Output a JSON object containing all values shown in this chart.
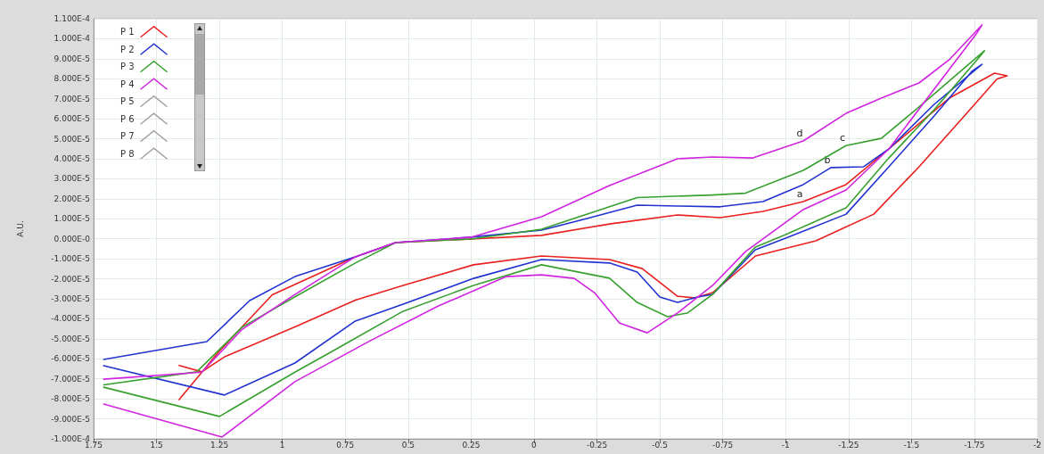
{
  "chart_data": {
    "type": "line",
    "ylabel": "A.U.",
    "xlim": [
      1.75,
      -2
    ],
    "xticks": [
      1.75,
      1.5,
      1.25,
      1,
      0.75,
      0.5,
      0.25,
      0,
      -0.25,
      -0.5,
      -0.75,
      -1,
      -1.25,
      -1.5,
      -1.75,
      -2
    ],
    "ylim": [
      -0.0001,
      0.00011
    ],
    "yticks": [
      {
        "value": 0.00011,
        "label": "1.100E-4"
      },
      {
        "value": 0.0001,
        "label": "1.000E-4"
      },
      {
        "value": 9e-05,
        "label": "9.000E-5"
      },
      {
        "value": 8e-05,
        "label": "8.000E-5"
      },
      {
        "value": 7e-05,
        "label": "7.000E-5"
      },
      {
        "value": 6e-05,
        "label": "6.000E-5"
      },
      {
        "value": 5e-05,
        "label": "5.000E-5"
      },
      {
        "value": 4e-05,
        "label": "4.000E-5"
      },
      {
        "value": 3e-05,
        "label": "3.000E-5"
      },
      {
        "value": 2e-05,
        "label": "2.000E-5"
      },
      {
        "value": 1e-05,
        "label": "1.000E-5"
      },
      {
        "value": 0,
        "label": "0.000E-0"
      },
      {
        "value": -1e-05,
        "label": "-1.000E-5"
      },
      {
        "value": -2e-05,
        "label": "-2.000E-5"
      },
      {
        "value": -3e-05,
        "label": "-3.000E-5"
      },
      {
        "value": -4e-05,
        "label": "-4.000E-5"
      },
      {
        "value": -5e-05,
        "label": "-5.000E-5"
      },
      {
        "value": -6e-05,
        "label": "-6.000E-5"
      },
      {
        "value": -7e-05,
        "label": "-7.000E-5"
      },
      {
        "value": -8e-05,
        "label": "-8.000E-5"
      },
      {
        "value": -9e-05,
        "label": "-9.000E-5"
      },
      {
        "value": -0.0001,
        "label": "-1.000E-4"
      }
    ],
    "grid": true,
    "legend": "top left",
    "marker": "none",
    "line_style": "solid",
    "annotations": [
      {
        "text": "a",
        "x": -1.07,
        "y": 1.86e-05
      },
      {
        "text": "b",
        "x": -1.18,
        "y": 3.56e-05
      },
      {
        "text": "c",
        "x": -1.24,
        "y": 4.66e-05
      },
      {
        "text": "d",
        "x": -1.07,
        "y": 4.89e-05
      }
    ],
    "series": [
      {
        "name": "P 1",
        "color": "#e8201f",
        "x": [
          1.41,
          1.25,
          1.04,
          0.71,
          0.55,
          0.25,
          -0.03,
          -0.3,
          -0.57,
          -0.74,
          -0.91,
          -1.07,
          -1.24,
          -1.41,
          -1.65,
          -1.83,
          -1.88,
          -1.84,
          -1.71,
          -1.53,
          -1.35,
          -1.12,
          -0.88,
          -0.71,
          -0.64,
          -0.57,
          -0.43,
          -0.3,
          -0.03,
          0.24,
          0.52,
          0.71,
          0.95,
          1.23,
          1.32,
          1.41
        ],
        "values": [
          -8.04e-05,
          -5.61e-05,
          -2.8e-05,
          -9e-06,
          -1.9e-06,
          -1e-07,
          1.7e-06,
          7.4e-06,
          1.19e-05,
          1.06e-05,
          1.37e-05,
          1.86e-05,
          2.71e-05,
          4.49e-05,
          7.03e-05,
          8.28e-05,
          8.15e-05,
          7.99e-05,
          6.14e-05,
          3.6e-05,
          1.23e-05,
          -1e-06,
          -8.6e-06,
          -2.69e-05,
          -2.96e-05,
          -2.87e-05,
          -1.49e-05,
          -1.04e-05,
          -8.6e-06,
          -1.3e-05,
          -2.33e-05,
          -3.07e-05,
          -4.4e-05,
          -5.9e-05,
          -6.65e-05,
          -6.33e-05
        ]
      },
      {
        "name": "P 2",
        "color": "#2232d0",
        "x": [
          1.71,
          1.3,
          1.13,
          0.95,
          0.71,
          0.55,
          0.25,
          -0.03,
          -0.21,
          -0.41,
          -0.57,
          -0.74,
          -0.91,
          -1.07,
          -1.18,
          -1.31,
          -1.41,
          -1.59,
          -1.78,
          -1.74,
          -1.59,
          -1.41,
          -1.24,
          -1,
          -0.88,
          -0.71,
          -0.65,
          -0.57,
          -0.5,
          -0.41,
          -0.3,
          -0.03,
          0.24,
          0.52,
          0.71,
          0.95,
          1.23,
          1.71
        ],
        "values": [
          -6.03e-05,
          -5.14e-05,
          -3.09e-05,
          -1.89e-05,
          -9e-06,
          -1.9e-06,
          8e-07,
          4.3e-06,
          1.01e-05,
          1.68e-05,
          1.64e-05,
          1.6e-05,
          1.86e-05,
          2.71e-05,
          3.56e-05,
          3.6e-05,
          4.49e-05,
          6.72e-05,
          8.72e-05,
          8.37e-05,
          6.14e-05,
          3.6e-05,
          1.23e-05,
          3e-07,
          -5.5e-06,
          -2.78e-05,
          -2.91e-05,
          -3.18e-05,
          -2.91e-05,
          -1.66e-05,
          -1.21e-05,
          -1.04e-05,
          -1.98e-05,
          -3.27e-05,
          -4.11e-05,
          -6.21e-05,
          -7.81e-05,
          -6.34e-05
        ]
      },
      {
        "name": "P 3",
        "color": "#38a030",
        "x": [
          1.71,
          1.34,
          1.16,
          0.95,
          0.71,
          0.55,
          0.25,
          -0.03,
          -0.41,
          -0.71,
          -0.84,
          -1.07,
          -1.24,
          -1.38,
          -1.53,
          -1.79,
          -1.76,
          -1.59,
          -1.41,
          -1.24,
          -1,
          -0.88,
          -0.71,
          -0.61,
          -0.53,
          -0.41,
          -0.3,
          -0.03,
          0.24,
          0.52,
          0.79,
          0.95,
          1.25,
          1.71
        ],
        "values": [
          -7.3e-05,
          -6.65e-05,
          -4.42e-05,
          -2.9e-05,
          -1.21e-05,
          -1.9e-06,
          -1e-07,
          4.8e-06,
          2.06e-05,
          2.19e-05,
          2.28e-05,
          3.42e-05,
          4.66e-05,
          5.02e-05,
          6.59e-05,
          9.4e-05,
          8.94e-05,
          6.45e-05,
          4.04e-05,
          1.55e-05,
          2.1e-06,
          -4.1e-06,
          -2.77e-05,
          -3.71e-05,
          -3.89e-05,
          -3.18e-05,
          -1.97e-05,
          -1.3e-05,
          -2.33e-05,
          -3.62e-05,
          -5.54e-05,
          -6.67e-05,
          -8.88e-05,
          -7.42e-05
        ]
      },
      {
        "name": "P 4",
        "color": "#d024e0",
        "x": [
          1.71,
          1.32,
          1.16,
          0.95,
          0.71,
          0.55,
          0.25,
          -0.03,
          -0.3,
          -0.57,
          -0.71,
          -0.87,
          -1.07,
          -1.24,
          -1.38,
          -1.53,
          -1.65,
          -1.78,
          -1.76,
          -1.59,
          -1.41,
          -1.24,
          -1.07,
          -0.84,
          -0.71,
          -0.57,
          -0.45,
          -0.34,
          -0.24,
          -0.16,
          -0.03,
          0.11,
          0.38,
          0.65,
          0.95,
          1.24,
          1.71
        ],
        "values": [
          -7.02e-05,
          -6.67e-05,
          -4.53e-05,
          -2.78e-05,
          -9e-06,
          -1.9e-06,
          8e-07,
          1.1e-05,
          2.66e-05,
          4e-05,
          4.09e-05,
          4.04e-05,
          4.89e-05,
          6.27e-05,
          7.03e-05,
          7.79e-05,
          8.95e-05,
          0.0001069,
          0.0001029,
          7.48e-05,
          4.49e-05,
          2.44e-05,
          1.46e-05,
          -6.4e-06,
          -2.33e-05,
          -3.71e-05,
          -4.7e-05,
          -4.21e-05,
          -2.69e-05,
          -1.98e-05,
          -1.8e-05,
          -1.89e-05,
          -3.36e-05,
          -5.09e-05,
          -7.14e-05,
          -9.91e-05,
          -8.26e-05
        ]
      },
      {
        "name": "P 5",
        "color": "#a0a0a0"
      },
      {
        "name": "P 6",
        "color": "#a0a0a0"
      },
      {
        "name": "P 7",
        "color": "#a0a0a0"
      },
      {
        "name": "P 8",
        "color": "#a0a0a0"
      }
    ]
  }
}
